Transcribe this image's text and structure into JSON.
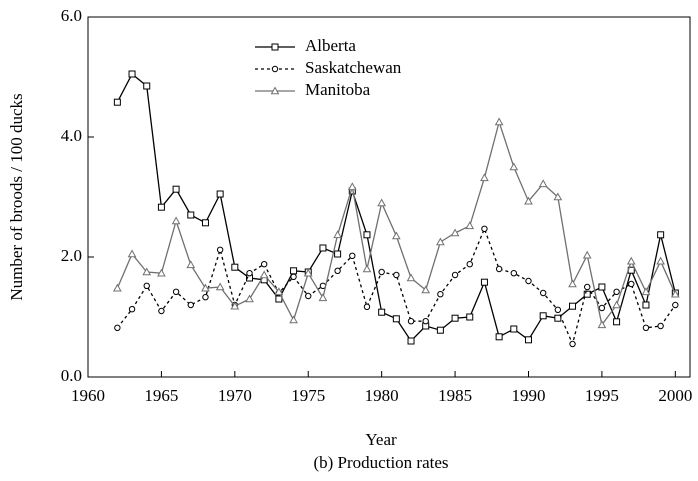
{
  "chart_data": {
    "type": "line",
    "x_label": "Year",
    "y_label": "Number of broods / 100 ducks",
    "caption": "(b) Production rates",
    "x": [
      1962,
      1963,
      1964,
      1965,
      1966,
      1967,
      1968,
      1969,
      1970,
      1971,
      1972,
      1973,
      1974,
      1975,
      1976,
      1977,
      1978,
      1979,
      1980,
      1981,
      1982,
      1983,
      1984,
      1985,
      1986,
      1987,
      1988,
      1989,
      1990,
      1991,
      1992,
      1993,
      1994,
      1995,
      1996,
      1997,
      1998,
      1999,
      2000
    ],
    "series": [
      {
        "name": "Alberta",
        "color": "#000000",
        "dash": "solid",
        "marker": "square",
        "values": [
          4.58,
          5.05,
          4.85,
          2.83,
          3.13,
          2.7,
          2.57,
          3.05,
          1.83,
          1.65,
          1.62,
          1.3,
          1.77,
          1.75,
          2.15,
          2.05,
          3.1,
          2.37,
          1.08,
          0.97,
          0.6,
          0.85,
          0.78,
          0.98,
          1.0,
          1.58,
          0.67,
          0.8,
          0.62,
          1.02,
          0.98,
          1.18,
          1.38,
          1.5,
          0.92,
          1.78,
          1.2,
          2.37,
          1.4
        ]
      },
      {
        "name": "Saskatchewan",
        "color": "#000000",
        "dash": "dotted",
        "marker": "circle",
        "values": [
          0.82,
          1.13,
          1.52,
          1.1,
          1.42,
          1.2,
          1.33,
          2.12,
          1.2,
          1.73,
          1.88,
          1.4,
          1.67,
          1.35,
          1.52,
          1.77,
          2.02,
          1.17,
          1.75,
          1.7,
          0.93,
          0.93,
          1.38,
          1.7,
          1.88,
          2.47,
          1.8,
          1.73,
          1.6,
          1.4,
          1.12,
          0.55,
          1.5,
          1.15,
          1.42,
          1.55,
          0.82,
          0.85,
          1.2
        ]
      },
      {
        "name": "Manitoba",
        "color": "#707070",
        "dash": "solid",
        "marker": "triangle",
        "values": [
          1.48,
          2.05,
          1.75,
          1.73,
          2.6,
          1.87,
          1.48,
          1.5,
          1.18,
          1.3,
          1.7,
          1.42,
          0.95,
          1.73,
          1.32,
          2.37,
          3.17,
          1.8,
          2.9,
          2.35,
          1.65,
          1.45,
          2.25,
          2.4,
          2.52,
          3.32,
          4.25,
          3.5,
          2.93,
          3.22,
          3.0,
          1.55,
          2.03,
          0.87,
          1.2,
          1.93,
          1.42,
          1.93,
          1.38
        ]
      }
    ],
    "xlim": [
      1960,
      2001
    ],
    "xticks": [
      1960,
      1965,
      1970,
      1975,
      1980,
      1985,
      1990,
      1995,
      2000
    ],
    "ylim": [
      0,
      6
    ],
    "yticks": [
      {
        "value": 0,
        "label": "0.0"
      },
      {
        "value": 2,
        "label": "2.0"
      },
      {
        "value": 4,
        "label": "4.0"
      },
      {
        "value": 6,
        "label": "6.0"
      }
    ],
    "legend": "top"
  }
}
